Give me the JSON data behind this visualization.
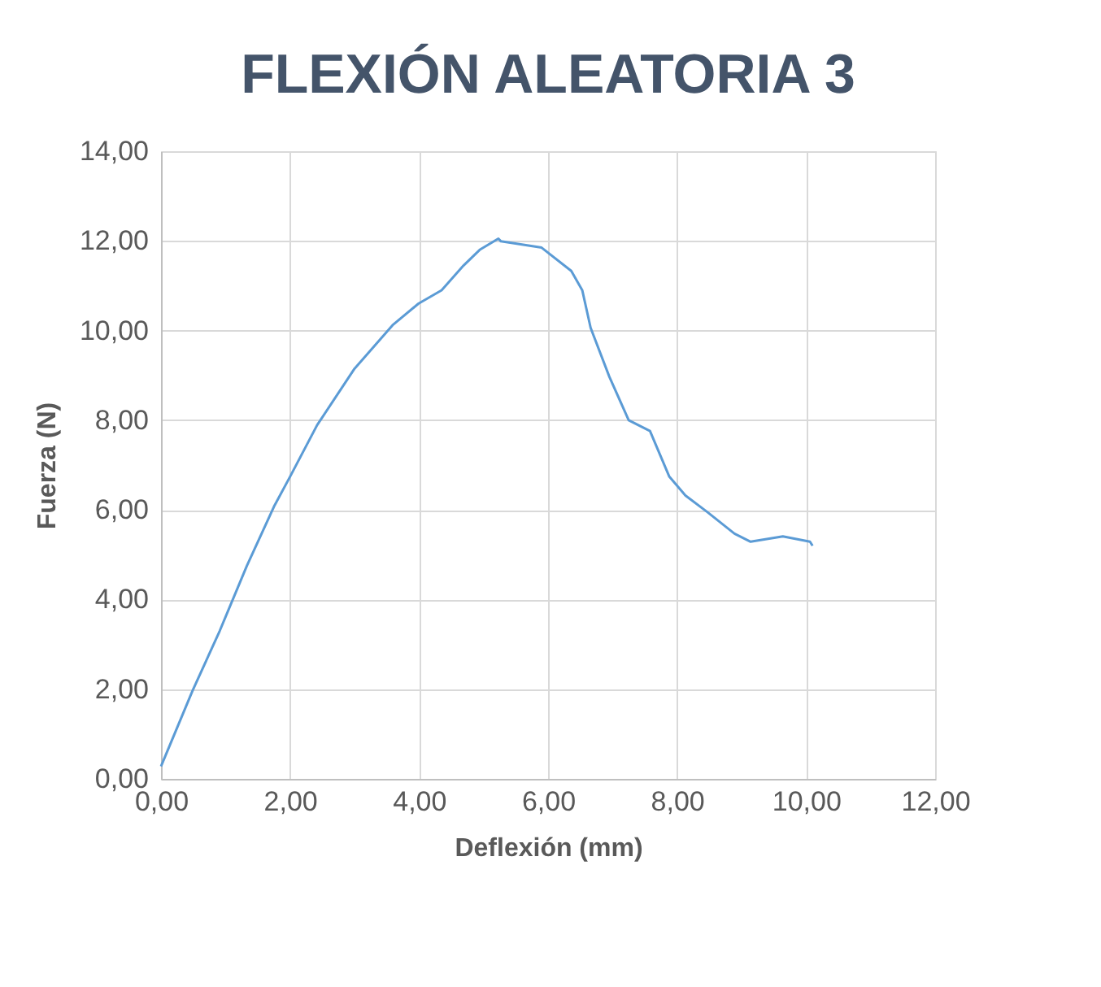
{
  "chart_data": {
    "type": "line",
    "title": "FLEXIÓN ALEATORIA 3",
    "xlabel": "Deflexión (mm)",
    "ylabel": "Fuerza (N)",
    "x": [
      0,
      0.49,
      0.91,
      1.33,
      1.75,
      2.0,
      2.42,
      3.0,
      3.59,
      3.99,
      4.35,
      4.69,
      4.94,
      5.23,
      5.27,
      5.9,
      6.36,
      6.53,
      6.66,
      6.95,
      7.25,
      7.58,
      7.88,
      8.13,
      8.47,
      8.89,
      9.14,
      9.64,
      10.06,
      10.1
    ],
    "series": [
      {
        "color": "#5b9bd5",
        "values": [
          0.28,
          1.97,
          3.3,
          4.75,
          6.07,
          6.74,
          7.89,
          9.15,
          10.12,
          10.6,
          10.9,
          11.45,
          11.8,
          12.05,
          11.99,
          11.85,
          11.33,
          10.9,
          10.06,
          8.97,
          8.0,
          7.76,
          6.74,
          6.32,
          5.95,
          5.47,
          5.29,
          5.41,
          5.29,
          5.2
        ]
      }
    ],
    "xlim": [
      0,
      12
    ],
    "ylim": [
      0,
      14
    ],
    "xticks": [
      {
        "value": 0,
        "label": "0,00"
      },
      {
        "value": 2,
        "label": "2,00"
      },
      {
        "value": 4,
        "label": "4,00"
      },
      {
        "value": 6,
        "label": "6,00"
      },
      {
        "value": 8,
        "label": "8,00"
      },
      {
        "value": 10,
        "label": "10,00"
      },
      {
        "value": 12,
        "label": "12,00"
      }
    ],
    "yticks": [
      {
        "value": 0,
        "label": "0,00"
      },
      {
        "value": 2,
        "label": "2,00"
      },
      {
        "value": 4,
        "label": "4,00"
      },
      {
        "value": 6,
        "label": "6,00"
      },
      {
        "value": 8,
        "label": "8,00"
      },
      {
        "value": 10,
        "label": "10,00"
      },
      {
        "value": 12,
        "label": "12,00"
      },
      {
        "value": 14,
        "label": "14,00"
      }
    ],
    "grid": true,
    "legend": false,
    "marker": "none",
    "line_style": "solid"
  }
}
